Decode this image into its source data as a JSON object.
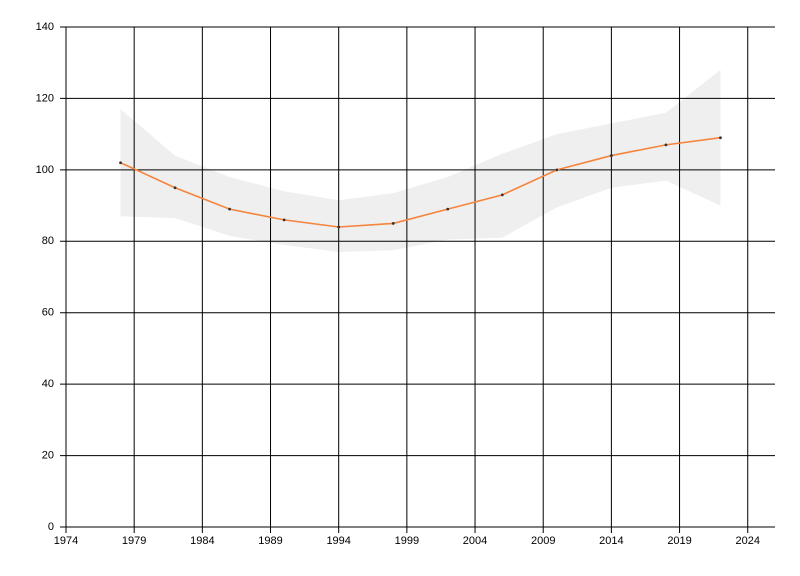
{
  "chart_data": {
    "type": "line",
    "x": [
      1978,
      1982,
      1986,
      1990,
      1994,
      1998,
      2002,
      2006,
      2010,
      2014,
      2018,
      2022
    ],
    "series": [
      {
        "color": "#f5843c",
        "values": [
          102,
          95,
          89,
          86,
          84,
          85,
          89,
          93,
          100,
          104,
          107,
          109
        ]
      }
    ],
    "band": {
      "color": "#efefef",
      "upper": [
        117,
        104,
        98,
        94,
        91.5,
        93.5,
        98,
        104.5,
        110,
        113,
        116,
        128
      ],
      "lower": [
        87,
        86.5,
        81.5,
        79,
        77,
        77.5,
        80.5,
        81,
        89.5,
        95,
        97,
        90
      ]
    },
    "xlim": [
      1974,
      2026
    ],
    "xticks": [
      1974,
      1979,
      1984,
      1989,
      1994,
      1999,
      2004,
      2009,
      2014,
      2019,
      2024
    ],
    "ylim": [
      0,
      140
    ],
    "yticks": [
      0,
      20,
      40,
      60,
      80,
      100,
      120,
      140
    ],
    "grid": true
  }
}
